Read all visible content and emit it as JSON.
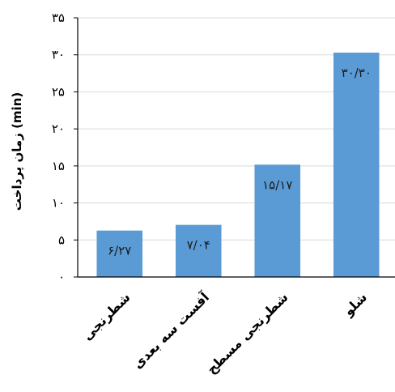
{
  "chart_data": {
    "type": "bar",
    "title": "",
    "xlabel": "",
    "ylabel": "زمان پرداخت (min)",
    "ylim": [
      0,
      35
    ],
    "y_ticks": [
      0,
      5,
      10,
      15,
      20,
      25,
      30,
      35
    ],
    "y_tick_labels": [
      "۰",
      "۵",
      "۱۰",
      "۱۵",
      "۲۰",
      "۲۵",
      "۳۰",
      "۳۵"
    ],
    "grid": true,
    "legend": "none",
    "bar_color": "#5b9bd5",
    "categories": [
      "شطرنجی",
      "آفست سه بعدی",
      "شطرنجی مسطح",
      "شلو"
    ],
    "values": [
      6.27,
      7.04,
      15.17,
      30.3
    ],
    "data_labels": [
      "۶/۲۷",
      "۷/۰۴",
      "۱۵/۱۷",
      "۳۰/۳۰"
    ]
  }
}
